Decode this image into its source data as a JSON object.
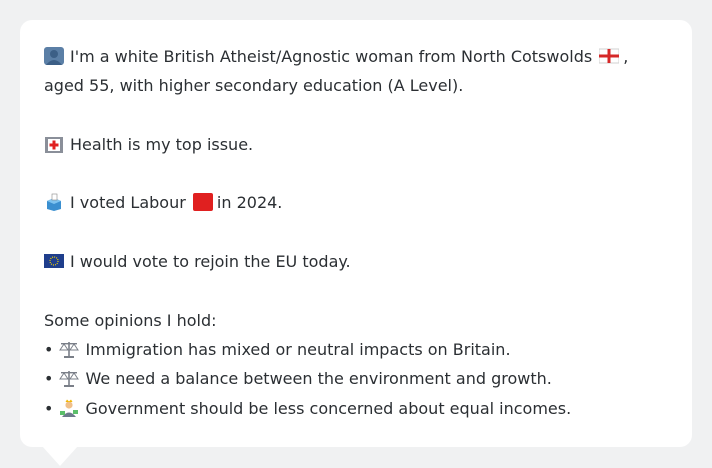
{
  "profile": {
    "identity_text_1": "I'm a white British Atheist/Agnostic woman from North Cotswolds",
    "identity_text_2": ",",
    "identity_text_3": "aged 55, with higher secondary education (A Level).",
    "health_text": "Health is my top issue.",
    "vote_text_1": "I voted Labour",
    "vote_text_2": "in 2024.",
    "eu_text": "I would vote to rejoin the EU today."
  },
  "opinions": {
    "heading": "Some opinions I hold:",
    "bullet": "•",
    "items": [
      {
        "text": "Immigration has mixed or neutral impacts on Britain.",
        "icon": "balance-scale-icon"
      },
      {
        "text": "We need a balance between the environment and growth.",
        "icon": "balance-scale-icon"
      },
      {
        "text": "Government should be less concerned about equal incomes.",
        "icon": "wealthy-person-icon"
      }
    ]
  },
  "icons": {
    "person": "person-silhouette-icon",
    "flag": "england-flag-icon",
    "health": "hospital-icon",
    "ballot": "ballot-box-icon",
    "party": "red-square-icon",
    "eu": "eu-flag-icon"
  },
  "colors": {
    "background": "#f0f1f2",
    "card": "#ffffff",
    "text": "#2b2f33",
    "labour_red": "#e02020",
    "eu_blue": "#1f3e8c"
  }
}
